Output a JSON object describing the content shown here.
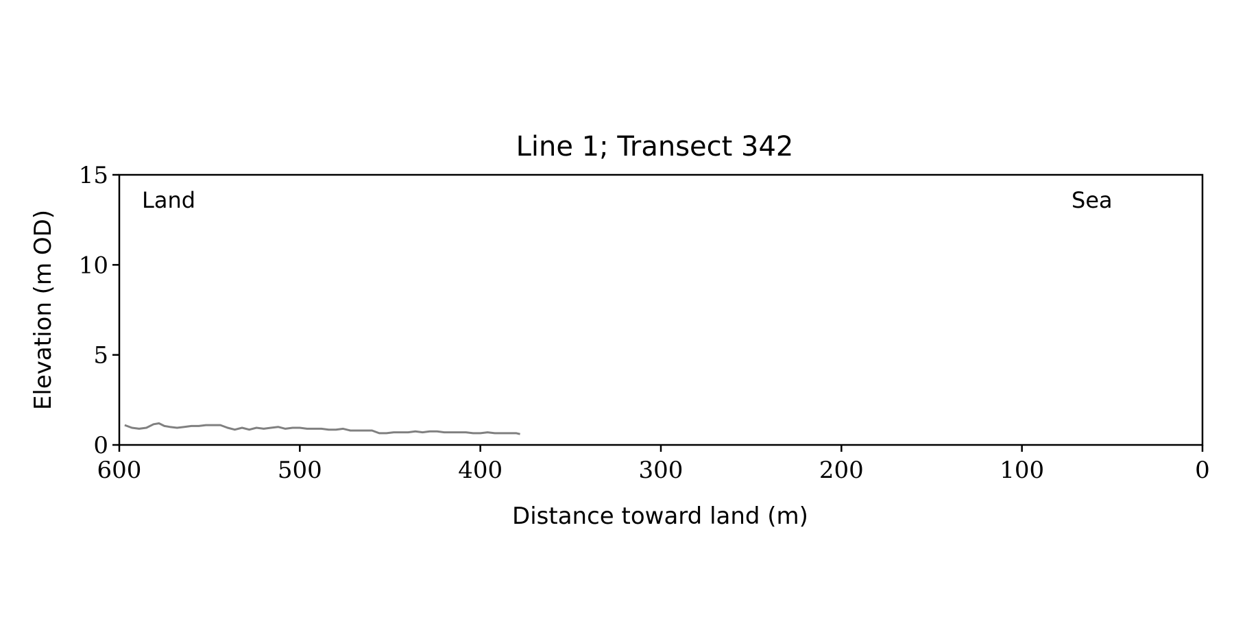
{
  "chart_data": {
    "type": "line",
    "title": "Line 1; Transect 342",
    "xlabel": "Distance toward land (m)",
    "ylabel": "Elevation (m OD)",
    "xlim": [
      600,
      0
    ],
    "ylim": [
      0,
      15
    ],
    "x_ticks": [
      "600",
      "500",
      "400",
      "300",
      "200",
      "100",
      "0"
    ],
    "y_ticks": [
      "0",
      "5",
      "10",
      "15"
    ],
    "grid": false,
    "annotations": {
      "left": "Land",
      "right": "Sea"
    },
    "series": [
      {
        "color": "#808080",
        "x": [
          597,
          593,
          589,
          585,
          581,
          578,
          575,
          572,
          568,
          564,
          560,
          556,
          552,
          548,
          544,
          540,
          536,
          532,
          528,
          524,
          520,
          516,
          512,
          508,
          504,
          500,
          496,
          492,
          488,
          484,
          480,
          476,
          472,
          468,
          464,
          460,
          456,
          452,
          448,
          444,
          440,
          436,
          432,
          428,
          424,
          420,
          416,
          412,
          408,
          404,
          400,
          396,
          392,
          388,
          384,
          380,
          378
        ],
        "y": [
          1.1,
          0.95,
          0.9,
          0.95,
          1.15,
          1.2,
          1.05,
          1.0,
          0.95,
          1.0,
          1.05,
          1.05,
          1.1,
          1.1,
          1.1,
          0.95,
          0.85,
          0.95,
          0.85,
          0.95,
          0.9,
          0.95,
          1.0,
          0.9,
          0.95,
          0.95,
          0.9,
          0.9,
          0.9,
          0.85,
          0.85,
          0.9,
          0.8,
          0.8,
          0.8,
          0.8,
          0.65,
          0.65,
          0.7,
          0.7,
          0.7,
          0.75,
          0.7,
          0.75,
          0.75,
          0.7,
          0.7,
          0.7,
          0.7,
          0.65,
          0.65,
          0.7,
          0.65,
          0.65,
          0.65,
          0.65,
          0.6
        ]
      }
    ]
  }
}
